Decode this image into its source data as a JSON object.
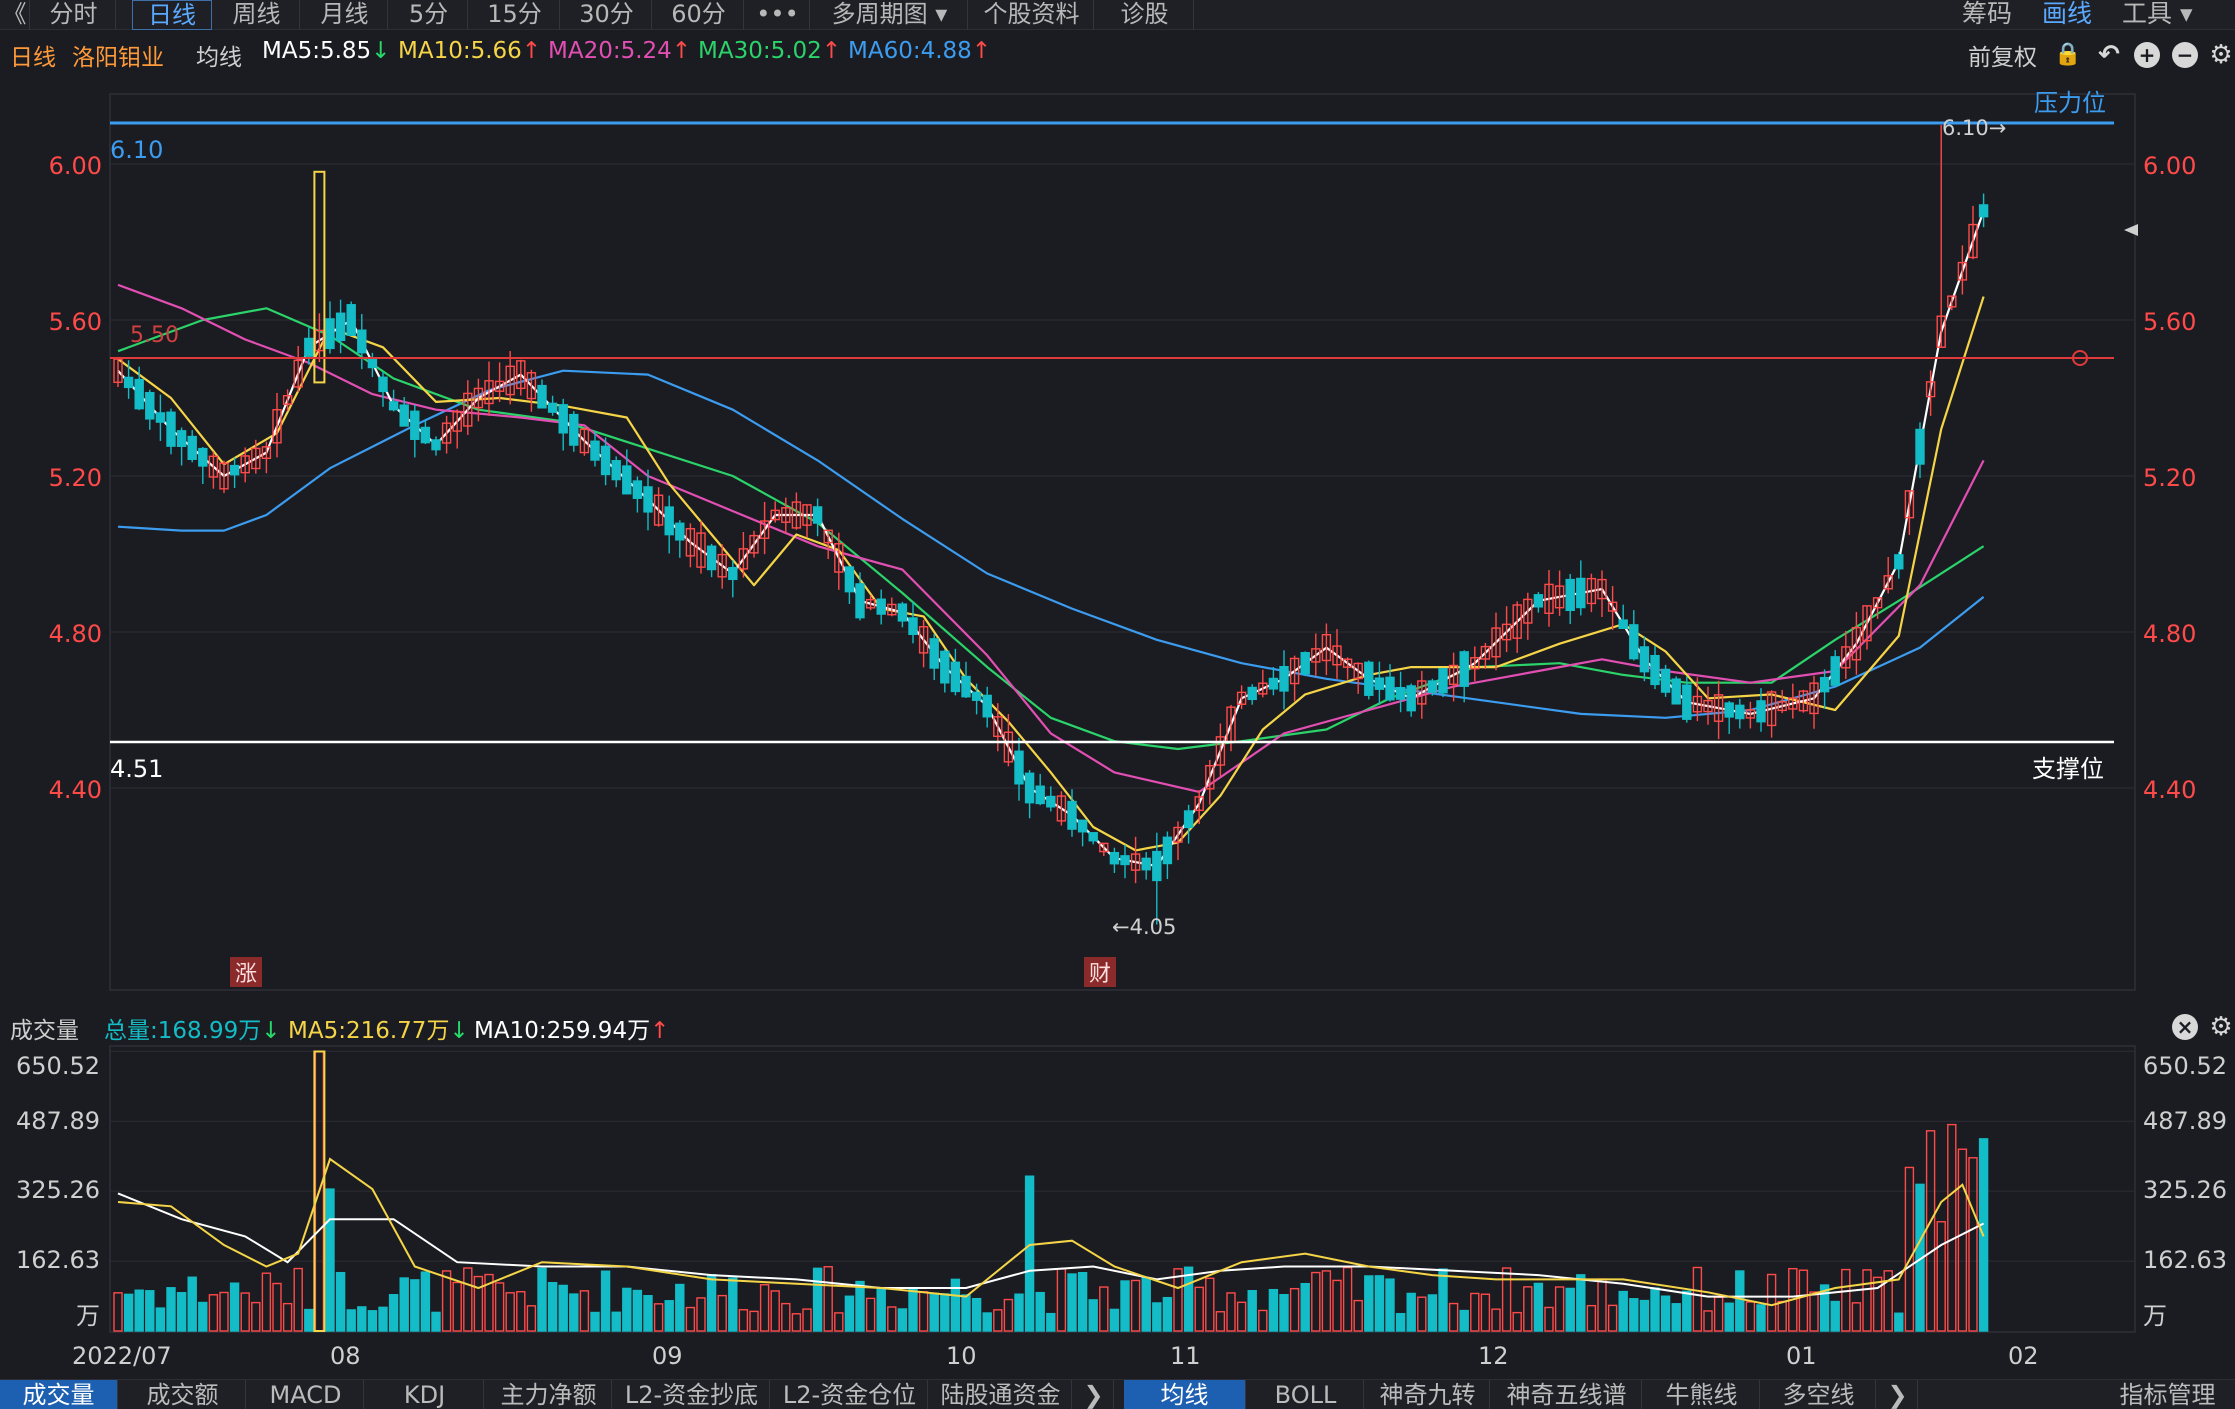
{
  "toolbar": {
    "back_label": "《",
    "tabs": [
      "分时",
      "日线",
      "周线",
      "月线",
      "5分",
      "15分",
      "30分",
      "60分",
      "•••",
      "多周期图 ▾",
      "个股资料",
      "诊股"
    ],
    "active_tab": "日线",
    "right": [
      "筹码",
      "画线",
      "工具 ▾"
    ],
    "right_active": "画线"
  },
  "ma_header": {
    "period": "日线",
    "stock_name": "洛阳钼业",
    "ma_label": "均线",
    "items": [
      {
        "text": "MA5:5.85",
        "arrow": "↓",
        "color": "#ffffff",
        "arrow_color": "#26d96a"
      },
      {
        "text": "MA10:5.66",
        "arrow": "↑",
        "color": "#f5d547",
        "arrow_color": "#ff4a4a"
      },
      {
        "text": "MA20:5.24",
        "arrow": "↑",
        "color": "#e24fb3",
        "arrow_color": "#ff4a4a"
      },
      {
        "text": "MA30:5.02",
        "arrow": "↑",
        "color": "#2bd36a",
        "arrow_color": "#ff4a4a"
      },
      {
        "text": "MA60:4.88",
        "arrow": "↑",
        "color": "#3c9cf0",
        "arrow_color": "#ff4a4a"
      }
    ],
    "fuquan": "前复权"
  },
  "price_axis": {
    "ticks": [
      "6.00",
      "5.60",
      "5.20",
      "4.80",
      "4.40"
    ],
    "resistance_value": "6.10",
    "resistance_label": "压力位",
    "support_value": "4.51",
    "support_label": "支撑位",
    "line_550": "5.50",
    "high_label": "6.10→",
    "low_label": "←4.05",
    "marker_zhang": "涨",
    "marker_cai": "财"
  },
  "volume_header": {
    "label": "成交量",
    "total": "总量:168.99万",
    "total_arrow": "↓",
    "ma5": "MA5:216.77万",
    "ma5_arrow": "↓",
    "ma10": "MA10:259.94万",
    "ma10_arrow": "↑"
  },
  "volume_axis": {
    "ticks": [
      "650.52",
      "487.89",
      "325.26",
      "162.63"
    ],
    "unit": "万"
  },
  "date_axis": [
    "2022/07",
    "08",
    "09",
    "10",
    "11",
    "12",
    "01",
    "02"
  ],
  "bottom_left_tabs": [
    "成交量",
    "成交额",
    "MACD",
    "KDJ",
    "主力净额",
    "L2-资金抄底",
    "L2-资金仓位",
    "陆股通资金"
  ],
  "bottom_right_tabs": [
    "均线",
    "BOLL",
    "神奇九转",
    "神奇五线谱",
    "牛熊线",
    "多空线"
  ],
  "bottom_indicator_mgmt": "指标管理",
  "chart_data": {
    "type": "candlestick",
    "price_ticks": [
      6.0,
      5.6,
      5.2,
      4.8,
      4.4
    ],
    "ylim": [
      4.08,
      6.12
    ],
    "resistance": 6.1,
    "support": 4.51,
    "ref_line": 5.5,
    "high": 6.1,
    "low": 4.05,
    "volume_ticks": [
      650.52,
      487.89,
      325.26,
      162.63
    ],
    "volume_unit": "万",
    "months": [
      "2022/07",
      "08",
      "09",
      "10",
      "11",
      "12",
      "01",
      "02"
    ],
    "colors": {
      "up": "#ff4a4a",
      "down": "#13bcc6",
      "ma5": "#ffffff",
      "ma10": "#f5d547",
      "ma20": "#e24fb3",
      "ma30": "#2bd36a",
      "ma60": "#3c9cf0"
    },
    "ma60_path": [
      [
        0,
        5.07
      ],
      [
        6,
        5.06
      ],
      [
        10,
        5.06
      ],
      [
        14,
        5.1
      ],
      [
        20,
        5.22
      ],
      [
        28,
        5.33
      ],
      [
        35,
        5.42
      ],
      [
        42,
        5.47
      ],
      [
        50,
        5.46
      ],
      [
        58,
        5.37
      ],
      [
        66,
        5.24
      ],
      [
        74,
        5.09
      ],
      [
        82,
        4.95
      ],
      [
        90,
        4.86
      ],
      [
        98,
        4.78
      ],
      [
        106,
        4.72
      ],
      [
        114,
        4.68
      ],
      [
        122,
        4.65
      ],
      [
        130,
        4.62
      ],
      [
        138,
        4.59
      ],
      [
        146,
        4.58
      ],
      [
        154,
        4.6
      ],
      [
        162,
        4.66
      ],
      [
        170,
        4.76
      ],
      [
        176,
        4.89
      ]
    ],
    "ma30_path": [
      [
        0,
        5.52
      ],
      [
        8,
        5.6
      ],
      [
        14,
        5.63
      ],
      [
        20,
        5.56
      ],
      [
        26,
        5.45
      ],
      [
        34,
        5.37
      ],
      [
        42,
        5.34
      ],
      [
        50,
        5.27
      ],
      [
        58,
        5.2
      ],
      [
        66,
        5.08
      ],
      [
        74,
        4.9
      ],
      [
        82,
        4.71
      ],
      [
        88,
        4.58
      ],
      [
        94,
        4.52
      ],
      [
        100,
        4.5
      ],
      [
        106,
        4.52
      ],
      [
        114,
        4.55
      ],
      [
        120,
        4.63
      ],
      [
        128,
        4.71
      ],
      [
        136,
        4.72
      ],
      [
        142,
        4.69
      ],
      [
        148,
        4.67
      ],
      [
        156,
        4.67
      ],
      [
        162,
        4.78
      ],
      [
        168,
        4.88
      ],
      [
        176,
        5.02
      ]
    ],
    "ma20_path": [
      [
        0,
        5.69
      ],
      [
        6,
        5.63
      ],
      [
        12,
        5.55
      ],
      [
        18,
        5.49
      ],
      [
        24,
        5.41
      ],
      [
        30,
        5.37
      ],
      [
        38,
        5.35
      ],
      [
        44,
        5.33
      ],
      [
        50,
        5.2
      ],
      [
        58,
        5.11
      ],
      [
        66,
        5.02
      ],
      [
        74,
        4.96
      ],
      [
        82,
        4.74
      ],
      [
        88,
        4.54
      ],
      [
        94,
        4.44
      ],
      [
        102,
        4.39
      ],
      [
        110,
        4.54
      ],
      [
        118,
        4.6
      ],
      [
        126,
        4.66
      ],
      [
        134,
        4.7
      ],
      [
        140,
        4.73
      ],
      [
        146,
        4.7
      ],
      [
        154,
        4.67
      ],
      [
        162,
        4.7
      ],
      [
        170,
        4.92
      ],
      [
        176,
        5.24
      ]
    ],
    "ma10_path": [
      [
        0,
        5.5
      ],
      [
        5,
        5.4
      ],
      [
        10,
        5.23
      ],
      [
        15,
        5.31
      ],
      [
        20,
        5.58
      ],
      [
        25,
        5.53
      ],
      [
        30,
        5.39
      ],
      [
        36,
        5.4
      ],
      [
        42,
        5.38
      ],
      [
        48,
        5.35
      ],
      [
        52,
        5.18
      ],
      [
        56,
        5.05
      ],
      [
        60,
        4.92
      ],
      [
        64,
        5.05
      ],
      [
        68,
        5.01
      ],
      [
        72,
        4.86
      ],
      [
        76,
        4.84
      ],
      [
        80,
        4.68
      ],
      [
        84,
        4.57
      ],
      [
        88,
        4.44
      ],
      [
        92,
        4.3
      ],
      [
        96,
        4.24
      ],
      [
        100,
        4.26
      ],
      [
        104,
        4.38
      ],
      [
        108,
        4.55
      ],
      [
        112,
        4.64
      ],
      [
        118,
        4.69
      ],
      [
        122,
        4.71
      ],
      [
        130,
        4.71
      ],
      [
        136,
        4.77
      ],
      [
        142,
        4.82
      ],
      [
        146,
        4.75
      ],
      [
        150,
        4.63
      ],
      [
        156,
        4.64
      ],
      [
        162,
        4.6
      ],
      [
        168,
        4.79
      ],
      [
        172,
        5.32
      ],
      [
        176,
        5.66
      ]
    ],
    "ma5_path": [
      [
        0,
        5.47
      ],
      [
        5,
        5.32
      ],
      [
        10,
        5.2
      ],
      [
        14,
        5.26
      ],
      [
        18,
        5.53
      ],
      [
        22,
        5.6
      ],
      [
        26,
        5.38
      ],
      [
        30,
        5.28
      ],
      [
        34,
        5.4
      ],
      [
        38,
        5.46
      ],
      [
        44,
        5.29
      ],
      [
        50,
        5.14
      ],
      [
        54,
        5.03
      ],
      [
        58,
        4.95
      ],
      [
        62,
        5.1
      ],
      [
        66,
        5.1
      ],
      [
        70,
        4.88
      ],
      [
        74,
        4.85
      ],
      [
        78,
        4.71
      ],
      [
        82,
        4.61
      ],
      [
        86,
        4.4
      ],
      [
        90,
        4.33
      ],
      [
        94,
        4.22
      ],
      [
        98,
        4.2
      ],
      [
        102,
        4.36
      ],
      [
        106,
        4.63
      ],
      [
        110,
        4.68
      ],
      [
        114,
        4.76
      ],
      [
        118,
        4.68
      ],
      [
        122,
        4.63
      ],
      [
        128,
        4.72
      ],
      [
        134,
        4.88
      ],
      [
        140,
        4.91
      ],
      [
        144,
        4.73
      ],
      [
        148,
        4.62
      ],
      [
        154,
        4.59
      ],
      [
        160,
        4.63
      ],
      [
        164,
        4.77
      ],
      [
        168,
        4.98
      ],
      [
        172,
        5.57
      ],
      [
        176,
        5.88
      ]
    ],
    "vol_ma5_path": [
      [
        0,
        300
      ],
      [
        5,
        290
      ],
      [
        10,
        200
      ],
      [
        14,
        150
      ],
      [
        17,
        180
      ],
      [
        20,
        400
      ],
      [
        24,
        330
      ],
      [
        28,
        150
      ],
      [
        34,
        100
      ],
      [
        40,
        160
      ],
      [
        48,
        150
      ],
      [
        56,
        120
      ],
      [
        64,
        110
      ],
      [
        72,
        100
      ],
      [
        80,
        80
      ],
      [
        86,
        200
      ],
      [
        90,
        210
      ],
      [
        94,
        150
      ],
      [
        100,
        100
      ],
      [
        106,
        160
      ],
      [
        112,
        180
      ],
      [
        118,
        150
      ],
      [
        124,
        130
      ],
      [
        130,
        120
      ],
      [
        136,
        120
      ],
      [
        142,
        120
      ],
      [
        150,
        90
      ],
      [
        156,
        60
      ],
      [
        162,
        100
      ],
      [
        168,
        120
      ],
      [
        172,
        300
      ],
      [
        174,
        340
      ],
      [
        176,
        220
      ]
    ],
    "vol_ma10_path": [
      [
        0,
        320
      ],
      [
        6,
        260
      ],
      [
        12,
        220
      ],
      [
        16,
        160
      ],
      [
        20,
        260
      ],
      [
        26,
        260
      ],
      [
        32,
        160
      ],
      [
        40,
        150
      ],
      [
        48,
        150
      ],
      [
        56,
        130
      ],
      [
        64,
        120
      ],
      [
        72,
        100
      ],
      [
        80,
        100
      ],
      [
        86,
        140
      ],
      [
        92,
        150
      ],
      [
        98,
        120
      ],
      [
        104,
        140
      ],
      [
        110,
        150
      ],
      [
        118,
        150
      ],
      [
        126,
        140
      ],
      [
        134,
        130
      ],
      [
        142,
        110
      ],
      [
        150,
        80
      ],
      [
        158,
        80
      ],
      [
        166,
        100
      ],
      [
        172,
        200
      ],
      [
        176,
        250
      ]
    ]
  }
}
